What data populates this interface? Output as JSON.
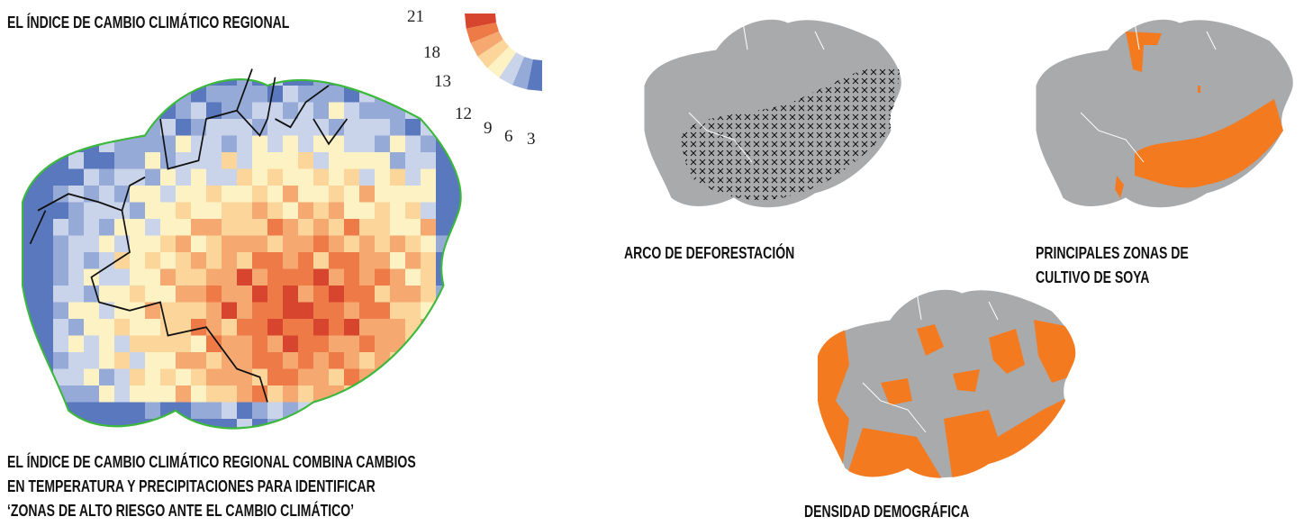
{
  "climate_map": {
    "title": "EL ÍNDICE DE CAMBIO CLIMÁTICO REGIONAL",
    "legend": {
      "values": [
        21,
        18,
        13,
        12,
        9,
        6,
        3
      ]
    },
    "caption": [
      "EL ÍNDICE DE CAMBIO CLIMÁTICO REGIONAL COMBINA CAMBIOS",
      "EN TEMPERATURA Y PRECIPITACIONES PARA IDENTIFICAR",
      "‘ZONAS DE ALTO RIESGO ANTE EL CAMBIO CLIMÁTICO’"
    ]
  },
  "maps": [
    {
      "label": [
        "ARCO DE DEFORESTACIÓN"
      ]
    },
    {
      "label": [
        "PRINCIPALES ZONAS DE",
        "CULTIVO DE SOYA"
      ]
    },
    {
      "label": [
        "DENSIDAD DEMOGRÁFICA"
      ]
    }
  ]
}
